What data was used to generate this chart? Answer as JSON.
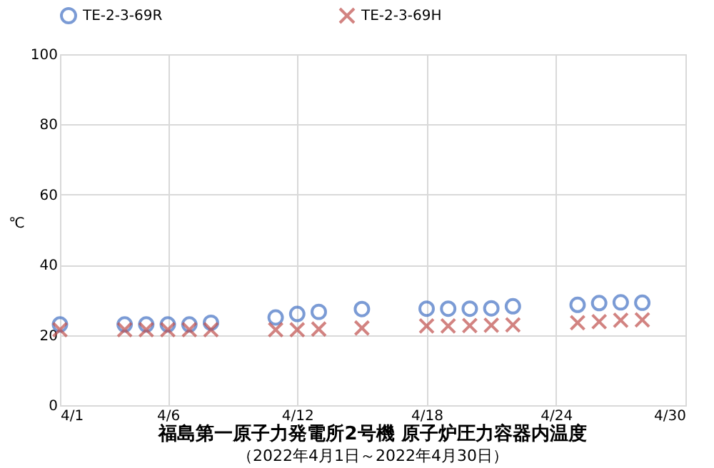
{
  "chart_data": {
    "type": "scatter",
    "title": "福島第一原子力発電所2号機 原子炉圧力容器内温度",
    "subtitle": "（2022年4月1日～2022年4月30日）",
    "ylabel": "℃",
    "x": [
      "2022-04-01",
      "2022-04-04",
      "2022-04-05",
      "2022-04-06",
      "2022-04-07",
      "2022-04-08",
      "2022-04-11",
      "2022-04-12",
      "2022-04-13",
      "2022-04-15",
      "2022-04-18",
      "2022-04-19",
      "2022-04-20",
      "2022-04-21",
      "2022-04-22",
      "2022-04-25",
      "2022-04-26",
      "2022-04-27",
      "2022-04-28"
    ],
    "series": [
      {
        "name": "TE-2-3-69R",
        "color": "#4472c4",
        "marker": "circle",
        "values": [
          23,
          23,
          23,
          23,
          23,
          23.5,
          25,
          26,
          26.6,
          27.4,
          27.5,
          27.5,
          27.5,
          27.6,
          28.2,
          28.6,
          29.1,
          29.3,
          29.2
        ]
      },
      {
        "name": "TE-2-3-69H",
        "color": "#c0504d",
        "marker": "cross",
        "values": [
          21.5,
          21.5,
          21.5,
          21.5,
          21.5,
          21.5,
          21.5,
          21.5,
          21.7,
          22,
          22.6,
          22.6,
          22.7,
          22.8,
          22.9,
          23.5,
          23.8,
          24.2,
          24.3
        ]
      }
    ],
    "xlim": [
      "2022-04-01",
      "2022-04-30"
    ],
    "xticks": [
      {
        "value": "2022-04-01",
        "label": "4/1"
      },
      {
        "value": "2022-04-06",
        "label": "4/6"
      },
      {
        "value": "2022-04-12",
        "label": "4/12"
      },
      {
        "value": "2022-04-18",
        "label": "4/18"
      },
      {
        "value": "2022-04-24",
        "label": "4/24"
      },
      {
        "value": "2022-04-30",
        "label": "4/30"
      }
    ],
    "ylim": [
      0,
      100
    ],
    "yticks": [
      0,
      20,
      40,
      60,
      80,
      100
    ],
    "grid": true,
    "legend": "top"
  }
}
